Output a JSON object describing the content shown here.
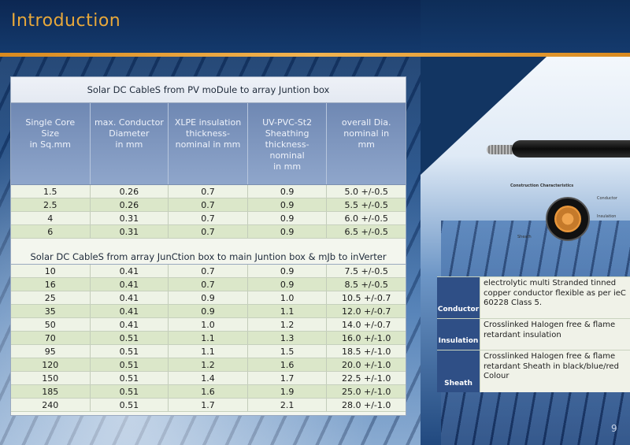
{
  "header": {
    "title": "Introduction"
  },
  "table1": {
    "title": "Solar DC CableS from PV moDule to array Juntion box",
    "columns": [
      [
        "Single Core",
        "Size",
        "in Sq.mm"
      ],
      [
        "max. Conductor",
        "Diameter",
        "in mm"
      ],
      [
        "XLPE insulation",
        "thickness-",
        "nominal  in mm"
      ],
      [
        "UV-PVC-St2",
        "Sheathing",
        "thickness-nominal",
        "in mm"
      ],
      [
        "overall Dia.",
        "nominal  in",
        "mm"
      ]
    ],
    "rows": [
      [
        "1.5",
        "0.26",
        "0.7",
        "0.9",
        "5.0 +/-0.5"
      ],
      [
        "2.5",
        "0.26",
        "0.7",
        "0.9",
        "5.5 +/-0.5"
      ],
      [
        "4",
        "0.31",
        "0.7",
        "0.9",
        "6.0 +/-0.5"
      ],
      [
        "6",
        "0.31",
        "0.7",
        "0.9",
        "6.5 +/-0.5"
      ]
    ]
  },
  "table2": {
    "title": "Solar DC CableS from array JunCtion box to main Juntion box & mJb to inVerter",
    "rows": [
      [
        "10",
        "0.41",
        "0.7",
        "0.9",
        "7.5 +/-0.5"
      ],
      [
        "16",
        "0.41",
        "0.7",
        "0.9",
        "8.5 +/-0.5"
      ],
      [
        "25",
        "0.41",
        "0.9",
        "1.0",
        "10.5 +/-0.7"
      ],
      [
        "35",
        "0.41",
        "0.9",
        "1.1",
        "12.0 +/-0.7"
      ],
      [
        "50",
        "0.41",
        "1.0",
        "1.2",
        "14.0 +/-0.7"
      ],
      [
        "70",
        "0.51",
        "1.1",
        "1.3",
        "16.0 +/-1.0"
      ],
      [
        "95",
        "0.51",
        "1.1",
        "1.5",
        "18.5 +/-1.0"
      ],
      [
        "120",
        "0.51",
        "1.2",
        "1.6",
        "20.0 +/-1.0"
      ],
      [
        "150",
        "0.51",
        "1.4",
        "1.7",
        "22.5 +/-1.0"
      ],
      [
        "185",
        "0.51",
        "1.6",
        "1.9",
        "25.0 +/-1.0"
      ],
      [
        "240",
        "0.51",
        "1.7",
        "2.1",
        "28.0 +/-1.0"
      ]
    ]
  },
  "figure": {
    "caption": "Construction Characteristics",
    "labels": {
      "conductor": "Conductor",
      "insulation": "Insulation",
      "sheath": "Sheath"
    }
  },
  "construction": [
    {
      "label": "Conductor",
      "text": "electrolytic multi Stranded tinned copper  conductor flexible as per ieC 60228 Class  5."
    },
    {
      "label": "Insulation",
      "text": "Crosslinked Halogen free & flame retardant  insulation"
    },
    {
      "label": "Sheath",
      "text": "Crosslinked Halogen free & flame retardant  Sheath in black/blue/red Colour"
    }
  ],
  "page_number": "9",
  "colors": {
    "title": "#e8a83a",
    "rule": "#d98a1f",
    "header_band": "#6f88b3",
    "label_bg": "#2f4f86"
  }
}
